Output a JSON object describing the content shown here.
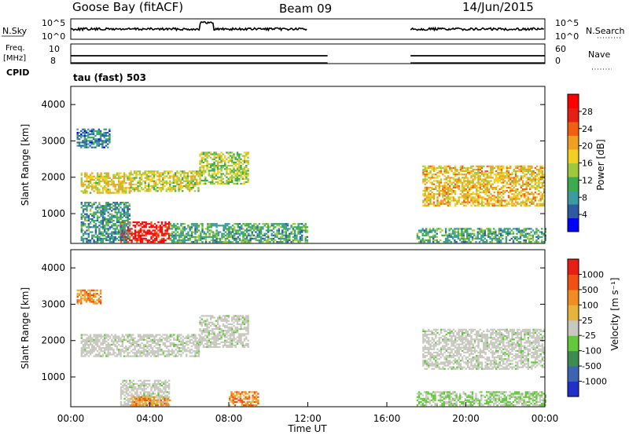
{
  "header": {
    "station": "Goose Bay (fitACF)",
    "beam": "Beam 09",
    "date": "14/Jun/2015"
  },
  "chart_data": [
    {
      "type": "line",
      "name": "noise-panel",
      "left_label": "N.Sky",
      "right_label": "N.Search",
      "left_ticks": [
        "10^5",
        "10^0"
      ],
      "right_ticks": [
        "10^5",
        "10^0"
      ],
      "segments": [
        [
          0.0,
          12.0
        ],
        [
          17.2,
          24.0
        ]
      ]
    },
    {
      "type": "line",
      "name": "frequency-panel",
      "left_label_top": "Freq.",
      "left_label_bottom": "[MHz]",
      "right_label": "Nave",
      "cpid_label": "CPID",
      "left_ticks": [
        "10",
        "8"
      ],
      "right_ticks": [
        "60",
        "0"
      ],
      "segments": [
        [
          0.0,
          13.0
        ],
        [
          17.2,
          24.0
        ]
      ],
      "cpid_text": "tau (fast) 503"
    },
    {
      "type": "heatmap",
      "name": "power-panel",
      "ylabel": "Slant Range [km]",
      "yticks": [
        1000,
        2000,
        3000,
        4000
      ],
      "ylim": [
        180,
        4500
      ],
      "xlim": [
        0,
        24
      ],
      "colorbar_label": "Power [dB]",
      "colorbar_ticks": [
        "28",
        "24",
        "20",
        "16",
        "12",
        "8",
        "4"
      ],
      "colorbar_colors": [
        "#0000ff",
        "#2d5aa0",
        "#3c9ba0",
        "#3caa50",
        "#a0c83c",
        "#f0d020",
        "#f0a020",
        "#f06010",
        "#e61e14",
        "#ff0000"
      ],
      "bands": [
        {
          "x0": 0.5,
          "x1": 3.0,
          "r0": 1550,
          "r1": 2100,
          "level": 0.55
        },
        {
          "x0": 3.0,
          "x1": 6.5,
          "r0": 1600,
          "r1": 2150,
          "level": 0.5
        },
        {
          "x0": 6.5,
          "x1": 9.0,
          "r0": 1800,
          "r1": 2700,
          "level": 0.45
        },
        {
          "x0": 2.5,
          "x1": 5.0,
          "r0": 200,
          "r1": 750,
          "level": 0.95
        },
        {
          "x0": 0.5,
          "x1": 3.0,
          "r0": 200,
          "r1": 1300,
          "level": 0.25
        },
        {
          "x0": 5.0,
          "x1": 12.0,
          "r0": 200,
          "r1": 700,
          "level": 0.3
        },
        {
          "x0": 17.8,
          "x1": 24.0,
          "r0": 1200,
          "r1": 2300,
          "level": 0.6
        },
        {
          "x0": 17.5,
          "x1": 24.0,
          "r0": 200,
          "r1": 600,
          "level": 0.3
        },
        {
          "x0": 0.3,
          "x1": 2.0,
          "r0": 2800,
          "r1": 3300,
          "level": 0.2
        }
      ]
    },
    {
      "type": "heatmap",
      "name": "velocity-panel",
      "ylabel": "Slant Range [km]",
      "yticks": [
        1000,
        2000,
        3000,
        4000
      ],
      "ylim": [
        180,
        4500
      ],
      "xlim": [
        0,
        24
      ],
      "xticks": [
        "00:00",
        "04:00",
        "08:00",
        "12:00",
        "16:00",
        "20:00",
        "00:00"
      ],
      "xlabel": "Time UT",
      "colorbar_label": "Velocity [m s⁻¹]",
      "colorbar_ticks": [
        "1000",
        "500",
        "100",
        "25",
        "-25",
        "-100",
        "-500",
        "-1000"
      ],
      "colorbar_colors": [
        "#2030c8",
        "#3c64b4",
        "#3c8c50",
        "#64c83c",
        "#c8c8c0",
        "#e6b43c",
        "#f08c20",
        "#f05014",
        "#e61e14"
      ],
      "bands": [
        {
          "x0": 0.5,
          "x1": 6.5,
          "r0": 1550,
          "r1": 2150,
          "level": "ground"
        },
        {
          "x0": 6.5,
          "x1": 9.0,
          "r0": 1800,
          "r1": 2700,
          "level": "ground"
        },
        {
          "x0": 2.5,
          "x1": 5.0,
          "r0": 200,
          "r1": 900,
          "level": "ground"
        },
        {
          "x0": 3.0,
          "x1": 5.0,
          "r0": 200,
          "r1": 450,
          "level": "orange"
        },
        {
          "x0": 8.0,
          "x1": 9.5,
          "r0": 200,
          "r1": 600,
          "level": "orange"
        },
        {
          "x0": 17.8,
          "x1": 24.0,
          "r0": 1200,
          "r1": 2300,
          "level": "ground"
        },
        {
          "x0": 17.5,
          "x1": 24.0,
          "r0": 200,
          "r1": 600,
          "level": "green"
        },
        {
          "x0": 0.3,
          "x1": 1.5,
          "r0": 3000,
          "r1": 3400,
          "level": "orange"
        }
      ]
    }
  ]
}
